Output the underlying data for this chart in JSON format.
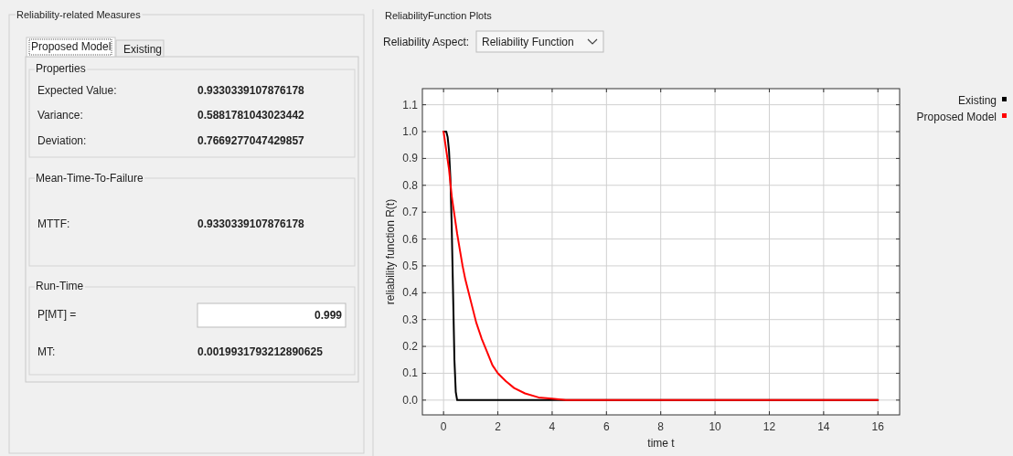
{
  "chart_data": [
    {
      "type": "other",
      "title": "Reliability-related Measures",
      "annotations": [
        "Proposed Model",
        "Existing",
        "Properties",
        "Expected Value:",
        "0.9330339107876178",
        "Variance:",
        "0.5881781043023442",
        "Deviation:",
        "0.7669277047429857",
        "Mean-Time-To-Failure",
        "MTTF:",
        "0.9330339107876178",
        "Run-Time",
        "P[MT] =",
        "0.999",
        "MT:",
        "0.0019931793212890625"
      ]
    },
    {
      "type": "line",
      "title": "ReliabilityFunction Plots",
      "annotations": [
        "Reliability Aspect:",
        "Reliability Function"
      ],
      "xlabel": "time t",
      "ylabel": "reliability function R(t)",
      "xlim": [
        -0.78,
        16.8
      ],
      "xticks": [
        0,
        2,
        4,
        6,
        8,
        10,
        12,
        14,
        16
      ],
      "ylim": [
        -0.055,
        1.16
      ],
      "yticks": [
        {
          "value": 0,
          "label": "0.0"
        },
        0.1,
        0.2,
        0.3,
        0.4,
        0.5,
        0.6,
        0.7,
        0.8,
        0.9,
        {
          "value": 1,
          "label": "1.0"
        },
        1.1
      ],
      "grid": true,
      "legend": "top right",
      "marker": "none",
      "line_style": "solid",
      "series": [
        {
          "name": "Existing",
          "color": "#000000",
          "x": [
            0,
            0.1,
            0.15,
            0.2,
            0.25,
            0.3,
            0.33,
            0.36,
            0.4,
            0.45,
            0.5,
            16
          ],
          "values": [
            1,
            1,
            0.98,
            0.93,
            0.83,
            0.65,
            0.5,
            0.35,
            0.15,
            0.03,
            0,
            0
          ]
        },
        {
          "name": "Proposed Model",
          "color": "#ff0000",
          "x": [
            0,
            0.1,
            0.2,
            0.3,
            0.4,
            0.5,
            0.6,
            0.7,
            0.8,
            1.0,
            1.2,
            1.4,
            1.6,
            1.8,
            2.0,
            2.3,
            2.6,
            3.0,
            3.5,
            4.0,
            4.5,
            16
          ],
          "values": [
            1,
            0.93,
            0.86,
            0.76,
            0.69,
            0.62,
            0.56,
            0.5,
            0.45,
            0.37,
            0.29,
            0.23,
            0.18,
            0.13,
            0.1,
            0.07,
            0.045,
            0.025,
            0.01,
            0.005,
            0,
            0
          ]
        }
      ]
    }
  ]
}
